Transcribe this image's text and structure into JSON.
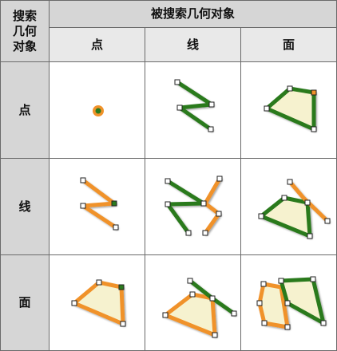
{
  "corner_label": "搜索\n几何\n对象",
  "top_header": "被搜索几何对象",
  "columns": [
    "点",
    "线",
    "面"
  ],
  "rows": [
    "点",
    "线",
    "面"
  ],
  "colors": {
    "search_geometry": "#f0922a",
    "searched_geometry": "#2a7a1e",
    "polygon_fill": "#f6f2cf",
    "header_bg": "#d6d6d6",
    "grid_line": "#6a6a6a"
  }
}
